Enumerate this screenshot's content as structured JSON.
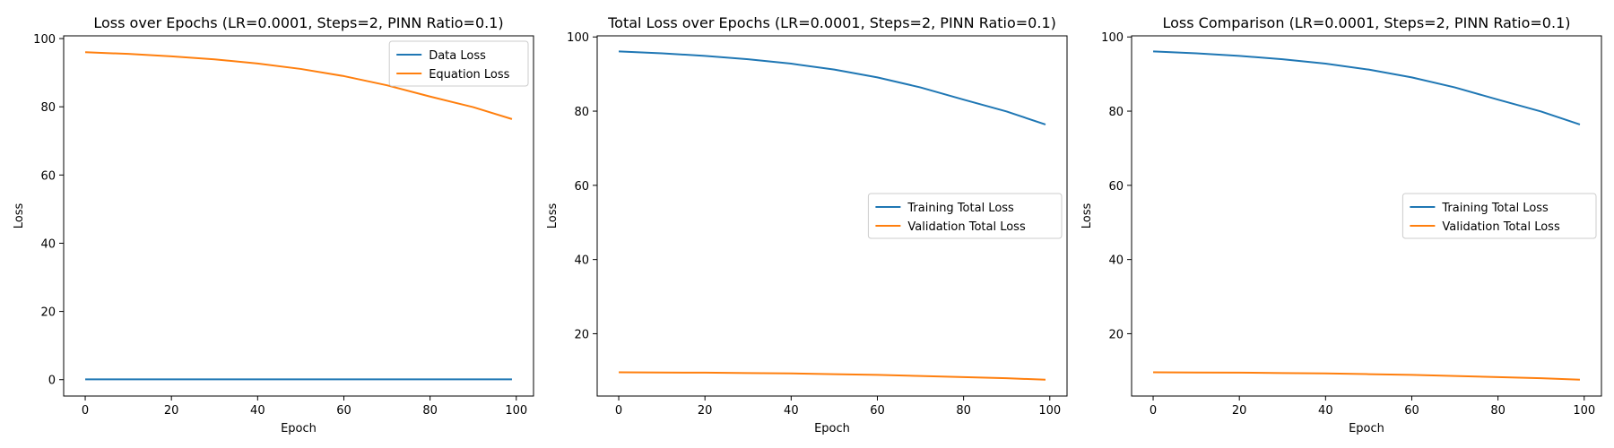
{
  "figure": {
    "background": "#ffffff"
  },
  "colors": {
    "series1": "#1f77b4",
    "series2": "#ff7f0e"
  },
  "chart_data": [
    {
      "type": "line",
      "title": "Loss over Epochs (LR=0.0001, Steps=2, PINN Ratio=0.1)",
      "xlabel": "Epoch",
      "ylabel": "Loss",
      "xlim": [
        -5,
        104
      ],
      "ylim": [
        -4.8,
        100.8
      ],
      "xticks": [
        0,
        20,
        40,
        60,
        80,
        100
      ],
      "yticks": [
        0,
        20,
        40,
        60,
        80,
        100
      ],
      "legend": "top-right",
      "grid": false,
      "x": [
        0,
        10,
        20,
        30,
        40,
        50,
        60,
        70,
        80,
        90,
        99
      ],
      "series": [
        {
          "name": "Data Loss",
          "color": "#1f77b4",
          "values": [
            0.1,
            0.1,
            0.1,
            0.1,
            0.1,
            0.1,
            0.1,
            0.1,
            0.1,
            0.1,
            0.1
          ]
        },
        {
          "name": "Equation Loss",
          "color": "#ff7f0e",
          "values": [
            96.0,
            95.5,
            94.8,
            93.9,
            92.7,
            91.1,
            89.0,
            86.3,
            83.0,
            79.9,
            76.4
          ]
        }
      ]
    },
    {
      "type": "line",
      "title": "Total Loss over Epochs (LR=0.0001, Steps=2, PINN Ratio=0.1)",
      "xlabel": "Epoch",
      "ylabel": "Loss",
      "xlim": [
        -5,
        104
      ],
      "ylim": [
        3.2,
        100.3
      ],
      "xticks": [
        0,
        20,
        40,
        60,
        80,
        100
      ],
      "yticks": [
        20,
        40,
        60,
        80,
        100
      ],
      "legend": "center-right",
      "grid": false,
      "x": [
        0,
        10,
        20,
        30,
        40,
        50,
        60,
        70,
        80,
        90,
        99
      ],
      "series": [
        {
          "name": "Training Total Loss",
          "color": "#1f77b4",
          "values": [
            96.1,
            95.6,
            94.9,
            94.0,
            92.8,
            91.2,
            89.1,
            86.4,
            83.1,
            79.9,
            76.4
          ]
        },
        {
          "name": "Validation Total Loss",
          "color": "#ff7f0e",
          "values": [
            9.6,
            9.55,
            9.5,
            9.4,
            9.3,
            9.1,
            8.9,
            8.6,
            8.3,
            8.0,
            7.6
          ]
        }
      ]
    },
    {
      "type": "line",
      "title": "Loss Comparison (LR=0.0001, Steps=2, PINN Ratio=0.1)",
      "xlabel": "Epoch",
      "ylabel": "Loss",
      "xlim": [
        -5,
        104
      ],
      "ylim": [
        3.2,
        100.3
      ],
      "xticks": [
        0,
        20,
        40,
        60,
        80,
        100
      ],
      "yticks": [
        20,
        40,
        60,
        80,
        100
      ],
      "legend": "center-right",
      "grid": false,
      "x": [
        0,
        10,
        20,
        30,
        40,
        50,
        60,
        70,
        80,
        90,
        99
      ],
      "series": [
        {
          "name": "Training Total Loss",
          "color": "#1f77b4",
          "values": [
            96.1,
            95.6,
            94.9,
            94.0,
            92.8,
            91.2,
            89.1,
            86.4,
            83.1,
            79.9,
            76.4
          ]
        },
        {
          "name": "Validation Total Loss",
          "color": "#ff7f0e",
          "values": [
            9.6,
            9.55,
            9.5,
            9.4,
            9.3,
            9.1,
            8.9,
            8.6,
            8.3,
            8.0,
            7.6
          ]
        }
      ]
    }
  ]
}
